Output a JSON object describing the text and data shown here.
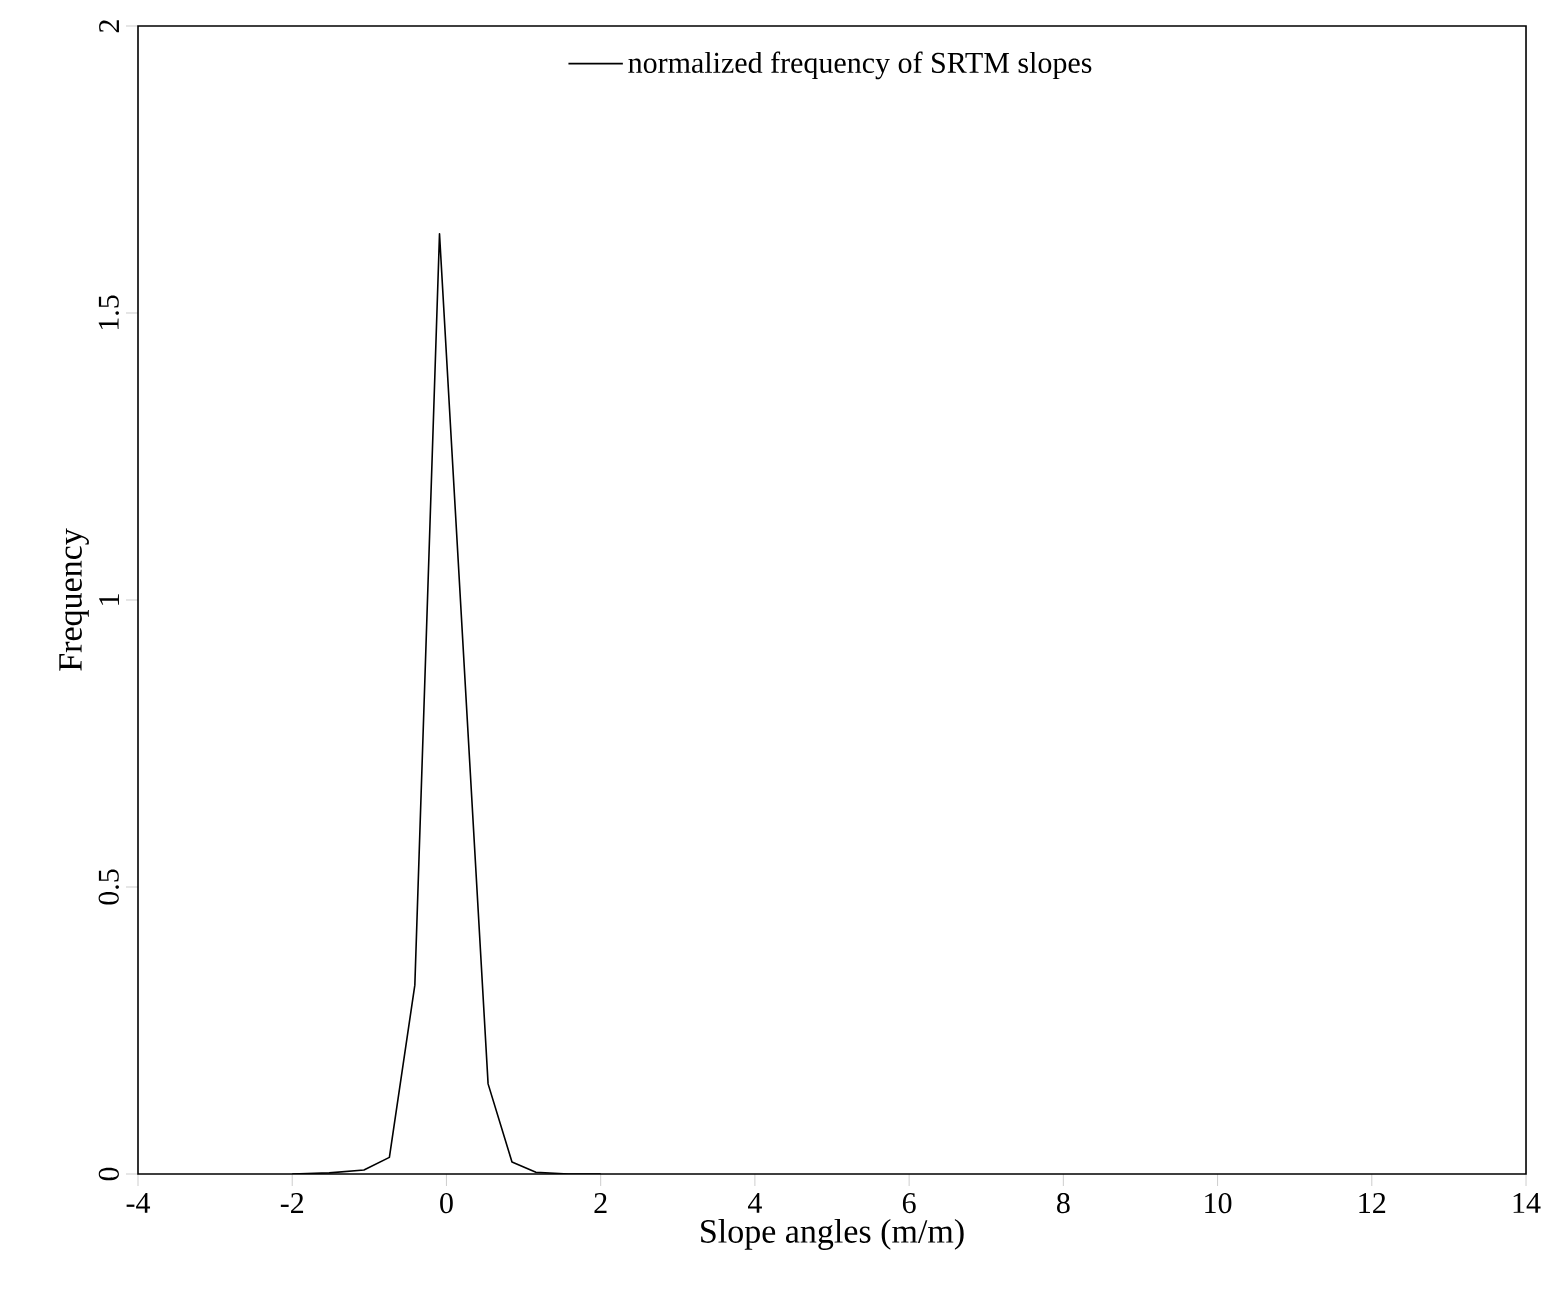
{
  "chart_data": {
    "type": "line",
    "xlabel": "Slope angles (m/m)",
    "ylabel": "Frequency",
    "series": [
      {
        "name": "normalized frequency of SRTM slopes",
        "color": "#000000",
        "x": [
          -2.0,
          -1.52,
          -1.07,
          -0.74,
          -0.41,
          -0.09,
          0.54,
          0.85,
          1.16,
          1.58,
          2.0
        ],
        "values": [
          0,
          0.002,
          0.007,
          0.029,
          0.329,
          1.638,
          0.157,
          0.021,
          0.003,
          0,
          0
        ]
      }
    ],
    "xlim": [
      -4,
      14
    ],
    "xticks": [
      -4,
      -2,
      0,
      2,
      4,
      6,
      8,
      10,
      12,
      14
    ],
    "ylim": [
      0,
      2
    ],
    "yticks": [
      0,
      0.5,
      1,
      1.5,
      2
    ],
    "legend": "top",
    "line_style": "solid",
    "marker": "none"
  }
}
